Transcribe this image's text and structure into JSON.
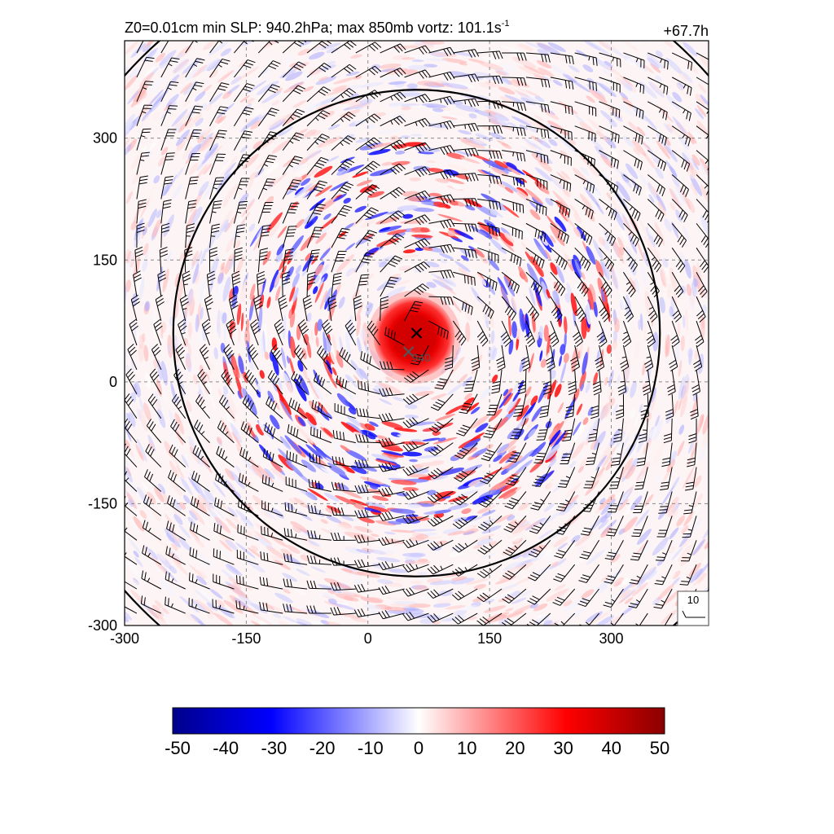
{
  "chart_data": {
    "type": "heatmap",
    "title": "Z0=0.01cm  min SLP: 940.2hPa; max 850mb vortz: 101.1s",
    "title_superscript": "-1",
    "time_label": "+67.7h",
    "xlabel": "",
    "ylabel": "",
    "xlim": [
      -300,
      420
    ],
    "ylim": [
      -300,
      420
    ],
    "x_ticks": [
      -300,
      -150,
      0,
      150,
      300
    ],
    "y_ticks": [
      -300,
      -150,
      0,
      150,
      300
    ],
    "x_tick_labels": [
      "-300",
      "-150",
      "0",
      "150",
      "300"
    ],
    "y_tick_labels": [
      "-300",
      "-150",
      "0",
      "150",
      "300"
    ],
    "grid": true,
    "grid_style": "dashed",
    "storm_center": [
      60,
      60
    ],
    "min_slp_marker": [
      50,
      37
    ],
    "min_slp_label": "940",
    "eye_core": {
      "center": [
        57,
        55
      ],
      "radius": 50,
      "vorticity": 45
    },
    "eyewall_band": {
      "inner_radius": 100,
      "outer_radius": 240
    },
    "isobar_radii": [
      300,
      480
    ],
    "wind_barb_spacing": 30,
    "wind_barb_scale_label": "10",
    "colorbar": {
      "min": -50,
      "max": 50,
      "ticks": [
        -50,
        -40,
        -30,
        -20,
        -10,
        0,
        10,
        20,
        30,
        40,
        50
      ],
      "tick_labels": [
        "-50",
        "-40",
        "-30",
        "-20",
        "-10",
        "0",
        "10",
        "20",
        "30",
        "40",
        "50"
      ],
      "colors": [
        "#00008b",
        "#0000ff",
        "#ffffff",
        "#ff0000",
        "#8b0000"
      ]
    }
  }
}
